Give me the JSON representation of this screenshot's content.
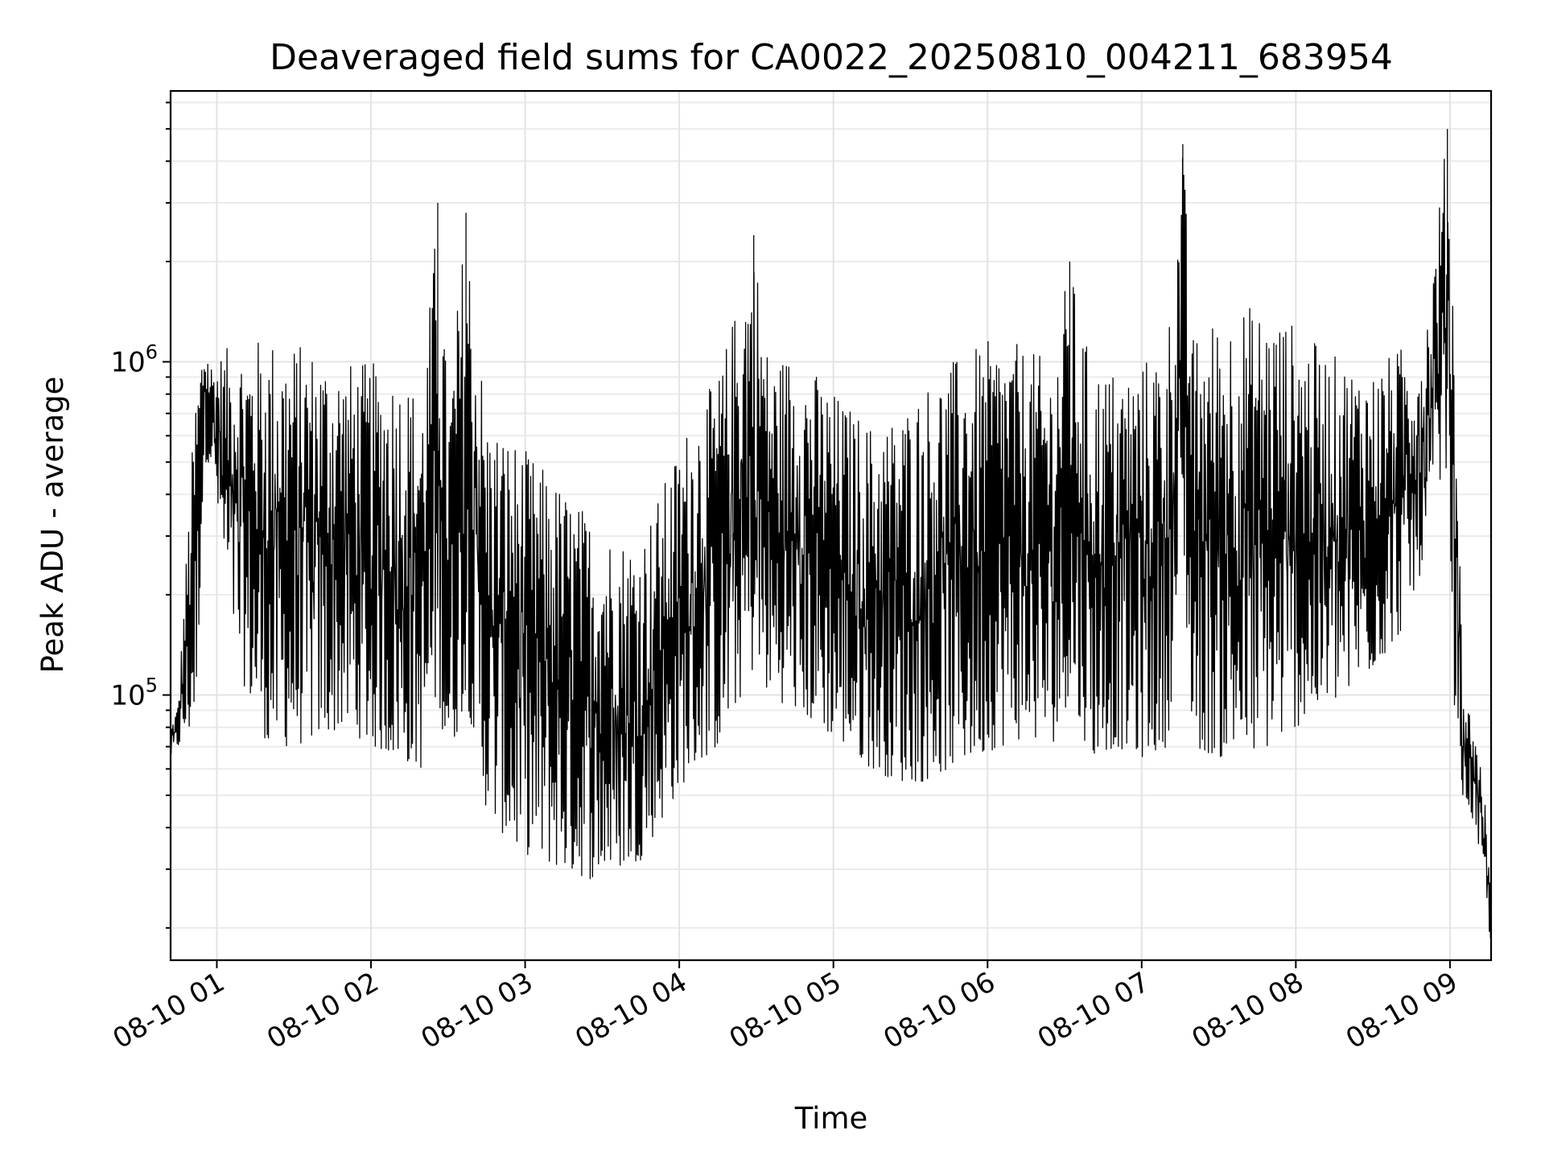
{
  "chart_data": {
    "type": "line",
    "title": "Deaveraged field sums for CA0022_20250810_004211_683954",
    "xlabel": "Time",
    "ylabel": "Peak ADU - average",
    "yscale": "log",
    "ylim": [
      16000,
      6500000
    ],
    "xlim": [
      "2025-08-10 00:42",
      "2025-08-10 09:16"
    ],
    "grid": true,
    "legend": "none",
    "line_color": "#000000",
    "x_ticks": [
      "08-10 01",
      "08-10 02",
      "08-10 03",
      "08-10 04",
      "08-10 05",
      "08-10 06",
      "08-10 07",
      "08-10 08",
      "08-10 09"
    ],
    "y_ticks": [
      {
        "base": "10",
        "exp": "5",
        "value": 100000
      },
      {
        "base": "10",
        "exp": "6",
        "value": 1000000
      }
    ],
    "series": [
      {
        "x": [
          "2025-08-10 00:42",
          "2025-08-10 00:45",
          "2025-08-10 00:49",
          "2025-08-10 00:52",
          "2025-08-10 00:55",
          "2025-08-10 00:58",
          "2025-08-10 01:04",
          "2025-08-10 01:10",
          "2025-08-10 01:20",
          "2025-08-10 01:30",
          "2025-08-10 01:40",
          "2025-08-10 01:50",
          "2025-08-10 02:00",
          "2025-08-10 02:10",
          "2025-08-10 02:20",
          "2025-08-10 02:26",
          "2025-08-10 02:30",
          "2025-08-10 02:37",
          "2025-08-10 02:45",
          "2025-08-10 02:55",
          "2025-08-10 03:05",
          "2025-08-10 03:15",
          "2025-08-10 03:25",
          "2025-08-10 03:35",
          "2025-08-10 03:45",
          "2025-08-10 03:55",
          "2025-08-10 04:05",
          "2025-08-10 04:15",
          "2025-08-10 04:29",
          "2025-08-10 04:35",
          "2025-08-10 04:45",
          "2025-08-10 04:55",
          "2025-08-10 05:05",
          "2025-08-10 05:15",
          "2025-08-10 05:25",
          "2025-08-10 05:35",
          "2025-08-10 05:45",
          "2025-08-10 05:55",
          "2025-08-10 06:05",
          "2025-08-10 06:15",
          "2025-08-10 06:25",
          "2025-08-10 06:32",
          "2025-08-10 06:40",
          "2025-08-10 06:50",
          "2025-08-10 07:00",
          "2025-08-10 07:10",
          "2025-08-10 07:16",
          "2025-08-10 07:20",
          "2025-08-10 07:30",
          "2025-08-10 07:40",
          "2025-08-10 07:50",
          "2025-08-10 08:00",
          "2025-08-10 08:10",
          "2025-08-10 08:20",
          "2025-08-10 08:30",
          "2025-08-10 08:40",
          "2025-08-10 08:50",
          "2025-08-10 08:59",
          "2025-08-10 09:02",
          "2025-08-10 09:05",
          "2025-08-10 09:08",
          "2025-08-10 09:11",
          "2025-08-10 09:14",
          "2025-08-10 09:16"
        ],
        "high": [
          80000,
          95000,
          350000,
          900000,
          1250000,
          1000000,
          1100000,
          1150000,
          1200000,
          1150000,
          1100000,
          1000000,
          1000000,
          950000,
          800000,
          3000000,
          750000,
          2800000,
          700000,
          600000,
          500000,
          420000,
          350000,
          300000,
          300000,
          450000,
          700000,
          900000,
          2400000,
          1000000,
          1100000,
          900000,
          750000,
          650000,
          700000,
          850000,
          1000000,
          1100000,
          1200000,
          1100000,
          1000000,
          2000000,
          1000000,
          950000,
          1000000,
          1200000,
          4500000,
          1200000,
          1400000,
          1500000,
          1450000,
          1300000,
          1100000,
          1000000,
          950000,
          1100000,
          1200000,
          5000000,
          1300000,
          100000,
          90000,
          70000,
          45000,
          25000
        ],
        "low": [
          65000,
          70000,
          75000,
          90000,
          500000,
          500000,
          200000,
          110000,
          70000,
          70000,
          75000,
          80000,
          70000,
          65000,
          60000,
          100000,
          60000,
          100000,
          45000,
          35000,
          32000,
          30000,
          28000,
          30000,
          32000,
          45000,
          60000,
          70000,
          120000,
          100000,
          90000,
          80000,
          70000,
          60000,
          55000,
          55000,
          60000,
          65000,
          70000,
          75000,
          70000,
          100000,
          65000,
          70000,
          65000,
          70000,
          250000,
          70000,
          65000,
          65000,
          70000,
          80000,
          90000,
          100000,
          120000,
          150000,
          250000,
          500000,
          80000,
          50000,
          45000,
          35000,
          25000,
          17000
        ]
      }
    ]
  }
}
